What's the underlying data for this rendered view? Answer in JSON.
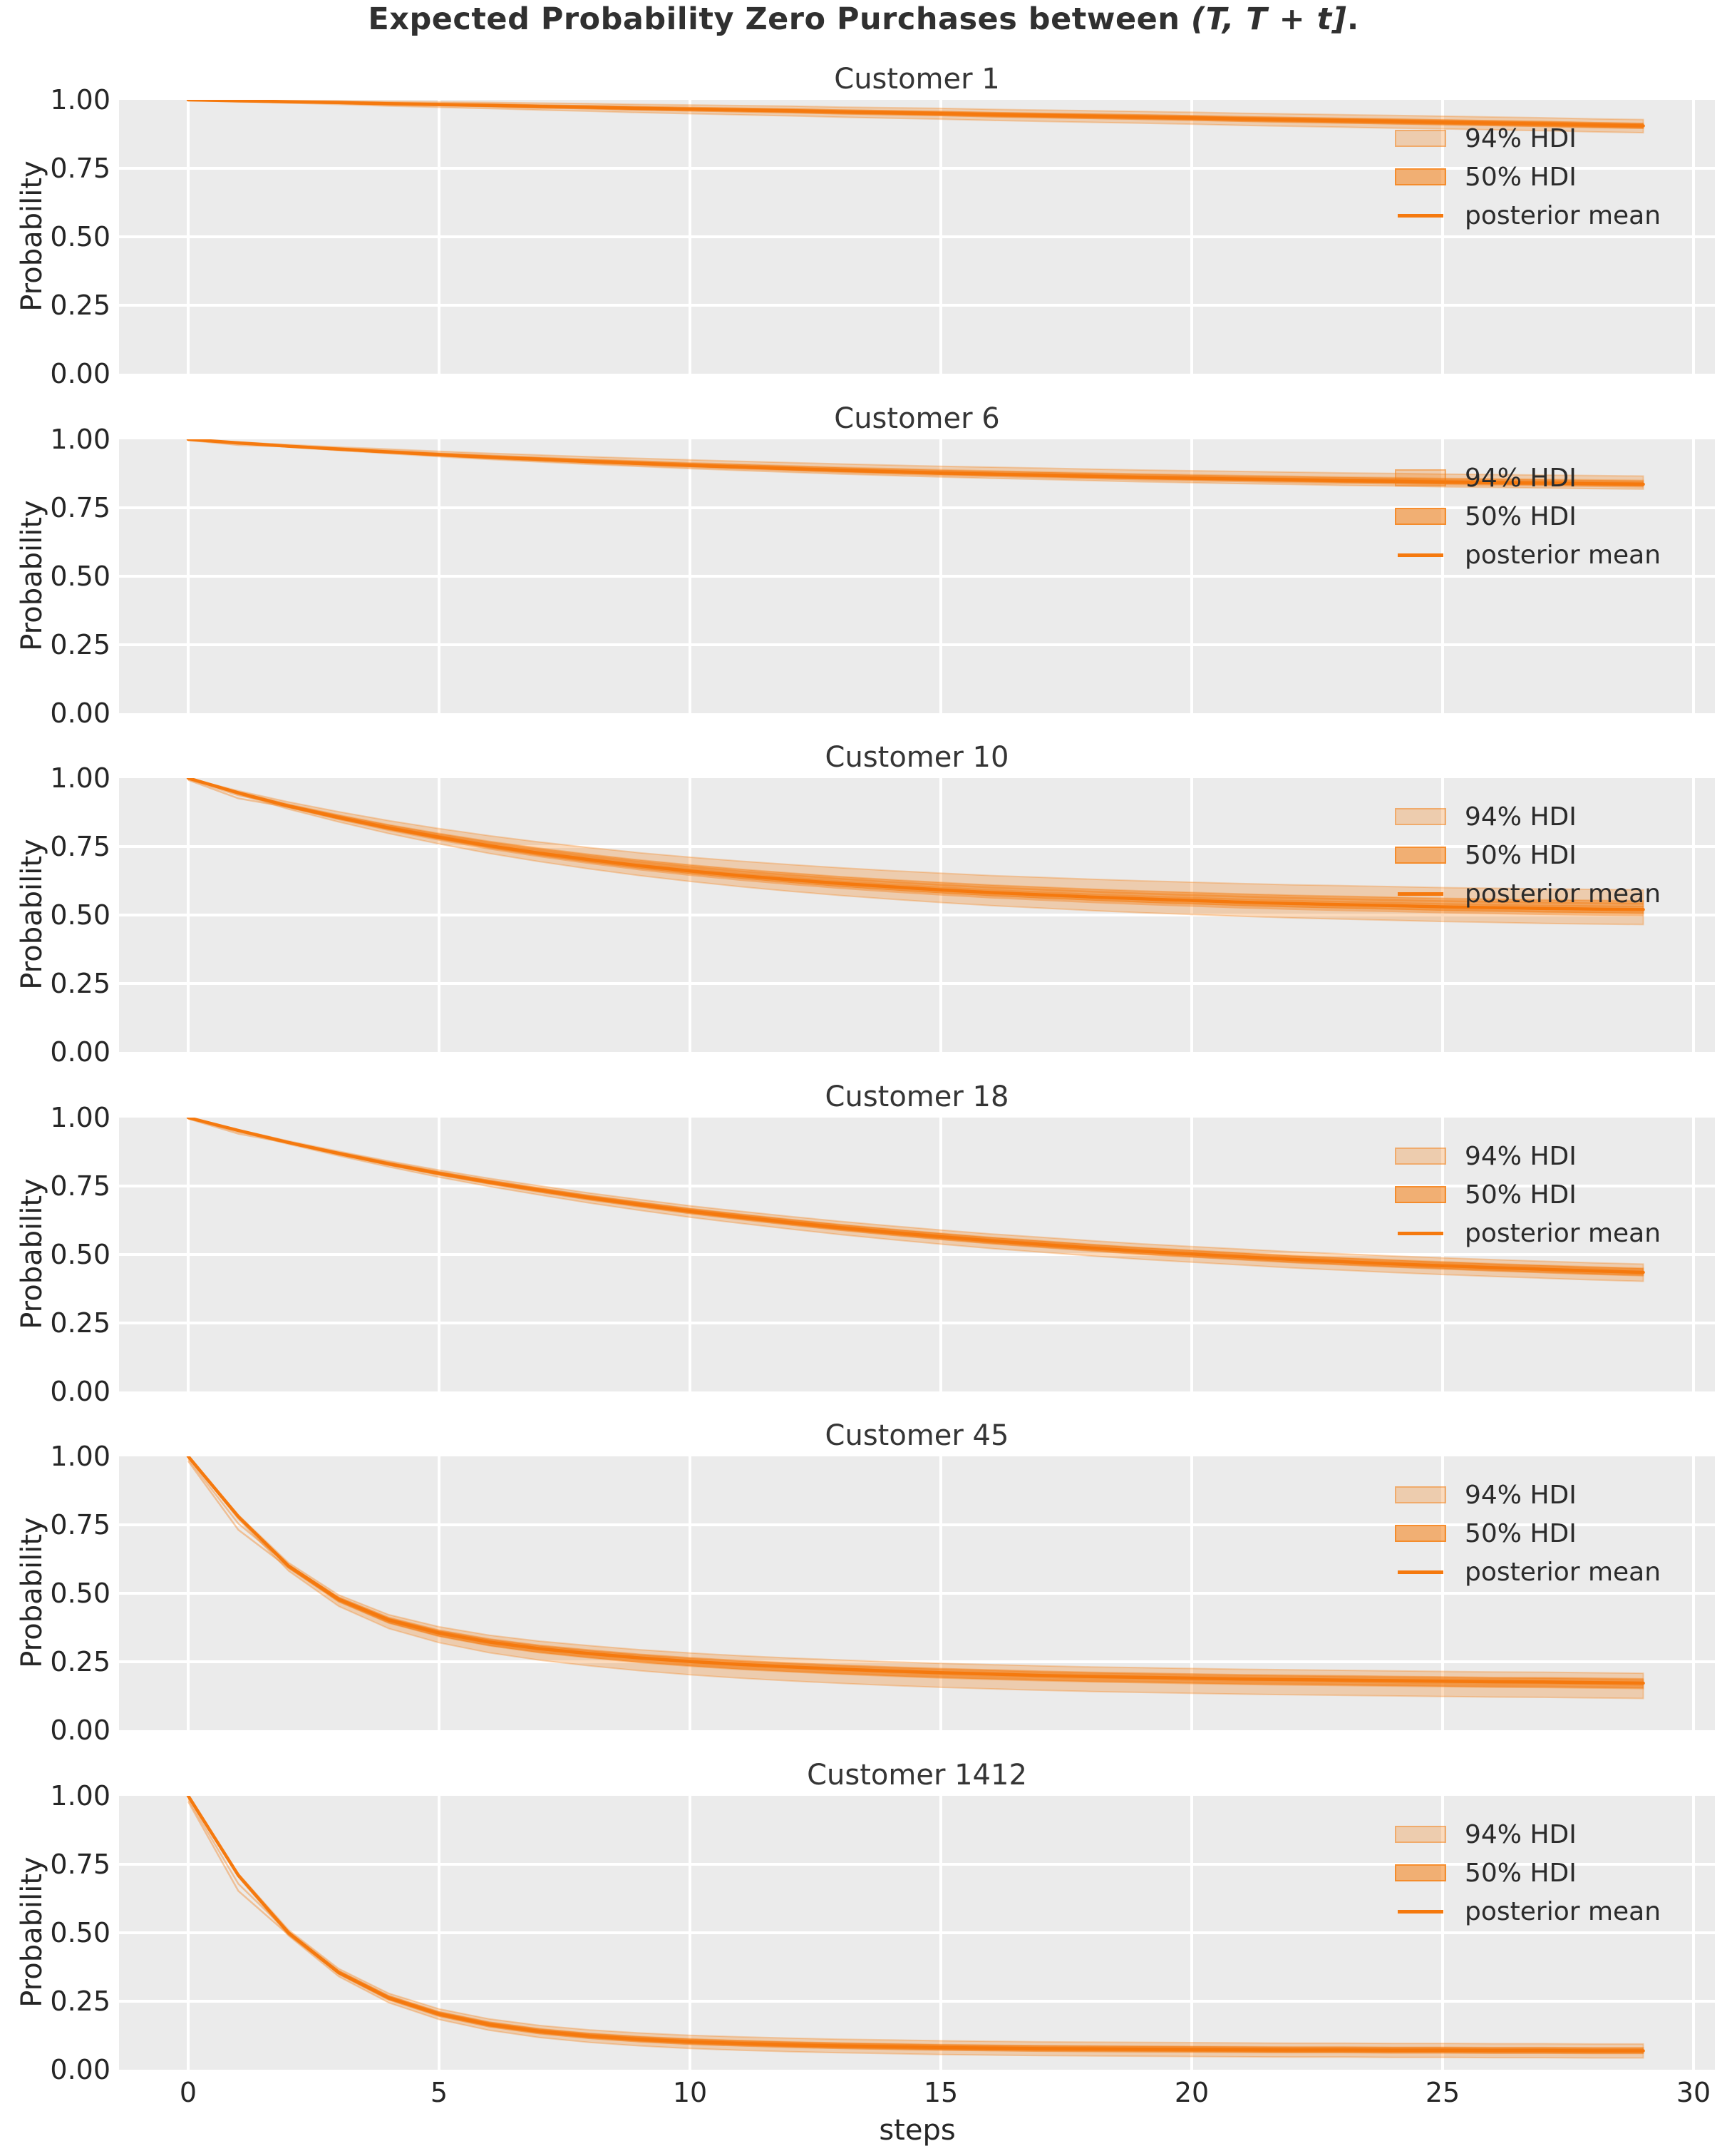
{
  "figure": {
    "suptitle_prefix": "Expected Probability Zero Purchases between ",
    "suptitle_math": "(T, T + t]",
    "suptitle_suffix": ".",
    "xlabel": "steps",
    "ylabel": "Probability",
    "x_tick_labels": [
      "0",
      "5",
      "10",
      "15",
      "20",
      "25",
      "30"
    ],
    "y_tick_labels": [
      "1.00",
      "0.75",
      "0.50",
      "0.25",
      "0.00"
    ],
    "legend_labels": {
      "hdi94": "94% HDI",
      "hdi50": "50% HDI",
      "posterior_mean": "posterior mean"
    }
  },
  "colors": {
    "posterior_mean_line": "#f5790e",
    "band_base": "#f57e11",
    "axes_background": "#ebebeb",
    "gridline": "#ffffff",
    "tick_text": "#262626",
    "title_text": "#303030"
  },
  "chart_data": {
    "type": "line",
    "xlabel": "steps",
    "ylabel": "Probability",
    "x": [
      0,
      1,
      2,
      3,
      4,
      5,
      6,
      7,
      8,
      9,
      10,
      11,
      12,
      13,
      14,
      15,
      16,
      17,
      18,
      19,
      20,
      21,
      22,
      23,
      24,
      25,
      26,
      27,
      28,
      29
    ],
    "xlim": [
      -1.4,
      30.4
    ],
    "ylim": [
      0,
      1
    ],
    "x_ticks": [
      0,
      5,
      10,
      15,
      20,
      25,
      30
    ],
    "y_ticks": [
      1.0,
      0.75,
      0.5,
      0.25,
      0.0
    ],
    "grid": "white on light-gray axes",
    "legend_position": "upper right, no frame",
    "subplots": [
      {
        "title": "Customer 1",
        "posterior_mean": [
          1.0,
          0.997,
          0.993,
          0.99,
          0.986,
          0.983,
          0.98,
          0.976,
          0.973,
          0.969,
          0.966,
          0.963,
          0.96,
          0.956,
          0.953,
          0.95,
          0.946,
          0.943,
          0.94,
          0.937,
          0.934,
          0.93,
          0.927,
          0.924,
          0.921,
          0.918,
          0.915,
          0.912,
          0.908,
          0.905
        ],
        "hdi94_at_end": [
          0.88,
          0.928
        ],
        "hdi50_at_end": [
          0.896,
          0.914
        ],
        "band_tau": 10,
        "start_spread": 0.004
      },
      {
        "title": "Customer 6",
        "posterior_mean": [
          1.0,
          0.987,
          0.975,
          0.964,
          0.954,
          0.944,
          0.935,
          0.927,
          0.919,
          0.912,
          0.905,
          0.899,
          0.893,
          0.887,
          0.882,
          0.877,
          0.873,
          0.869,
          0.865,
          0.861,
          0.858,
          0.855,
          0.852,
          0.849,
          0.847,
          0.844,
          0.842,
          0.84,
          0.838,
          0.836
        ],
        "hdi94_at_end": [
          0.818,
          0.866
        ],
        "hdi50_at_end": [
          0.83,
          0.85
        ],
        "band_tau": 10,
        "start_spread": 0.008
      },
      {
        "title": "Customer 10",
        "posterior_mean": [
          1.0,
          0.946,
          0.898,
          0.856,
          0.818,
          0.784,
          0.753,
          0.726,
          0.702,
          0.68,
          0.661,
          0.644,
          0.629,
          0.615,
          0.603,
          0.592,
          0.582,
          0.574,
          0.566,
          0.559,
          0.553,
          0.547,
          0.542,
          0.538,
          0.534,
          0.53,
          0.527,
          0.524,
          0.522,
          0.52
        ],
        "hdi94_at_end": [
          0.465,
          0.592
        ],
        "hdi50_at_end": [
          0.505,
          0.552
        ],
        "band_tau": 9,
        "start_spread": 0.02
      },
      {
        "title": "Customer 18",
        "posterior_mean": [
          1.0,
          0.953,
          0.909,
          0.869,
          0.831,
          0.796,
          0.764,
          0.735,
          0.707,
          0.682,
          0.658,
          0.637,
          0.617,
          0.598,
          0.581,
          0.565,
          0.55,
          0.537,
          0.524,
          0.512,
          0.502,
          0.492,
          0.482,
          0.474,
          0.466,
          0.459,
          0.452,
          0.446,
          0.44,
          0.435
        ],
        "hdi94_at_end": [
          0.402,
          0.465
        ],
        "hdi50_at_end": [
          0.424,
          0.45
        ],
        "band_tau": 10,
        "start_spread": 0.012
      },
      {
        "title": "Customer 45",
        "posterior_mean": [
          1.0,
          0.78,
          0.6,
          0.478,
          0.402,
          0.355,
          0.322,
          0.298,
          0.28,
          0.264,
          0.251,
          0.24,
          0.231,
          0.223,
          0.216,
          0.21,
          0.205,
          0.2,
          0.196,
          0.193,
          0.19,
          0.187,
          0.185,
          0.183,
          0.181,
          0.179,
          0.177,
          0.176,
          0.174,
          0.172
        ],
        "hdi94_at_end": [
          0.116,
          0.208
        ],
        "hdi50_at_end": [
          0.152,
          0.186
        ],
        "band_tau": 5,
        "start_spread": 0.05
      },
      {
        "title": "Customer 1412",
        "posterior_mean": [
          1.0,
          0.71,
          0.5,
          0.355,
          0.262,
          0.203,
          0.165,
          0.14,
          0.123,
          0.111,
          0.102,
          0.096,
          0.091,
          0.087,
          0.084,
          0.081,
          0.079,
          0.077,
          0.076,
          0.075,
          0.074,
          0.073,
          0.072,
          0.072,
          0.071,
          0.071,
          0.07,
          0.07,
          0.069,
          0.069
        ],
        "hdi94_at_end": [
          0.043,
          0.094
        ],
        "hdi50_at_end": [
          0.06,
          0.08
        ],
        "band_tau": 3.5,
        "start_spread": 0.06
      }
    ]
  }
}
